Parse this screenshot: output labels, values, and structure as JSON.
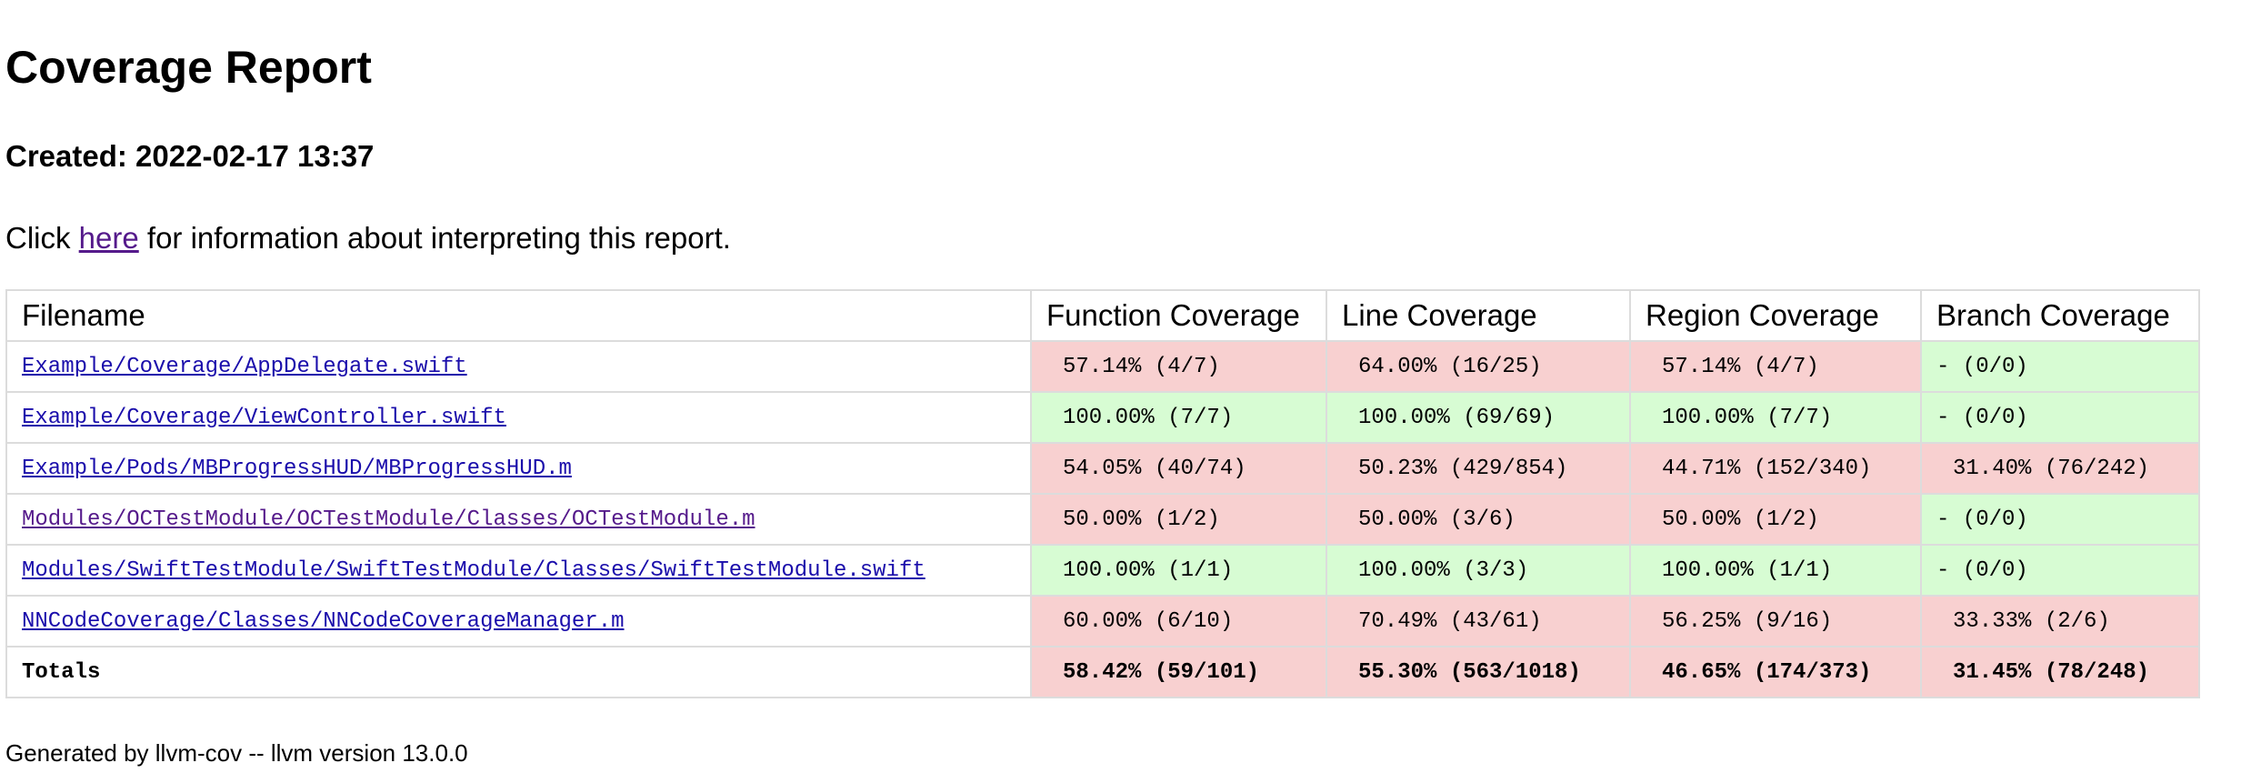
{
  "header": {
    "title": "Coverage Report",
    "created": "Created: 2022-02-17 13:37"
  },
  "intro": {
    "before": "Click ",
    "link": "here",
    "after": " for information about interpreting this report."
  },
  "table": {
    "columns": [
      "Filename",
      "Function Coverage",
      "Line Coverage",
      "Region Coverage",
      "Branch Coverage"
    ],
    "rows": [
      {
        "cells": [
          "Example/Coverage/AppDelegate.swift",
          "57.14% (4/7)",
          "64.00% (16/25)",
          "57.14% (4/7)",
          "- (0/0)"
        ],
        "fills": [
          "#f8d0d0",
          "#f8d0d0",
          "#f8d0d0",
          "#d7fcd3"
        ],
        "link_color": "#1a0dab"
      },
      {
        "cells": [
          "Example/Coverage/ViewController.swift",
          "100.00% (7/7)",
          "100.00% (69/69)",
          "100.00% (7/7)",
          "- (0/0)"
        ],
        "fills": [
          "#d7fcd3",
          "#d7fcd3",
          "#d7fcd3",
          "#d7fcd3"
        ],
        "link_color": "#1a0dab"
      },
      {
        "cells": [
          "Example/Pods/MBProgressHUD/MBProgressHUD.m",
          "54.05% (40/74)",
          "50.23% (429/854)",
          "44.71% (152/340)",
          "31.40% (76/242)"
        ],
        "fills": [
          "#f8d0d0",
          "#f8d0d0",
          "#f8d0d0",
          "#f8d0d0"
        ],
        "link_color": "#1a0dab"
      },
      {
        "cells": [
          "Modules/OCTestModule/OCTestModule/Classes/OCTestModule.m",
          "50.00% (1/2)",
          "50.00% (3/6)",
          "50.00% (1/2)",
          "- (0/0)"
        ],
        "fills": [
          "#f8d0d0",
          "#f8d0d0",
          "#f8d0d0",
          "#d7fcd3"
        ],
        "link_color": "#551a8b"
      },
      {
        "cells": [
          "Modules/SwiftTestModule/SwiftTestModule/Classes/SwiftTestModule.swift",
          "100.00% (1/1)",
          "100.00% (3/3)",
          "100.00% (1/1)",
          "- (0/0)"
        ],
        "fills": [
          "#d7fcd3",
          "#d7fcd3",
          "#d7fcd3",
          "#d7fcd3"
        ],
        "link_color": "#1a0dab"
      },
      {
        "cells": [
          "NNCodeCoverage/Classes/NNCodeCoverageManager.m",
          "60.00% (6/10)",
          "70.49% (43/61)",
          "56.25% (9/16)",
          "33.33% (2/6)"
        ],
        "fills": [
          "#f8d0d0",
          "#f8d0d0",
          "#f8d0d0",
          "#f8d0d0"
        ],
        "link_color": "#1a0dab"
      }
    ],
    "totals": {
      "cells": [
        "Totals",
        "58.42% (59/101)",
        "55.30% (563/1018)",
        "46.65% (174/373)",
        "31.45% (78/248)"
      ],
      "fills": [
        "#f8d0d0",
        "#f8d0d0",
        "#f8d0d0",
        "#f8d0d0"
      ]
    }
  },
  "footer": "Generated by llvm-cov -- llvm version 13.0.0"
}
